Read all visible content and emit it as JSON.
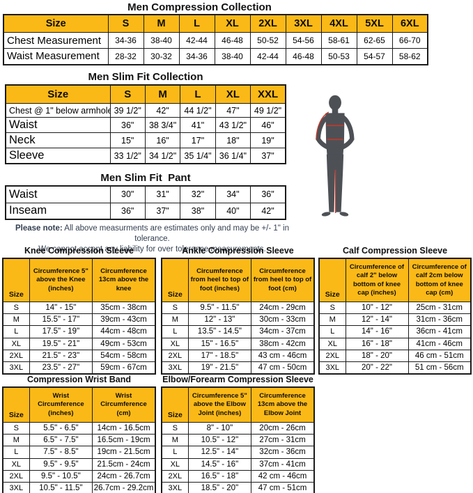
{
  "colors": {
    "header_gold": "#FBB917",
    "table_border": "#1b1b1b",
    "note_text": "#333F50",
    "figure_gray": "#4d5156",
    "measure_line_red": "#C0392B"
  },
  "tables": {
    "compression": {
      "title": "Men Compression Collection",
      "header": [
        "Size",
        "S",
        "M",
        "L",
        "XL",
        "2XL",
        "3XL",
        "4XL",
        "5XL",
        "6XL"
      ],
      "rows": [
        {
          "label": "Chest Measurement",
          "values": [
            "34-36",
            "38-40",
            "42-44",
            "46-48",
            "50-52",
            "54-56",
            "58-61",
            "62-65",
            "66-70"
          ]
        },
        {
          "label": "Waist Measurement",
          "values": [
            "28-32",
            "30-32",
            "34-36",
            "38-40",
            "42-44",
            "46-48",
            "50-53",
            "54-57",
            "58-62"
          ]
        }
      ]
    },
    "slim_fit": {
      "title": "Men Slim Fit Collection",
      "header": [
        "Size",
        "S",
        "M",
        "L",
        "XL",
        "XXL"
      ],
      "rows": [
        {
          "label": "Chest @ 1\" below armhole",
          "values": [
            "39 1/2\"",
            "42\"",
            "44 1/2\"",
            "47\"",
            "49 1/2\""
          ]
        },
        {
          "label": "Waist",
          "values": [
            "36\"",
            "38 3/4\"",
            "41\"",
            "43 1/2\"",
            "46\""
          ]
        },
        {
          "label": "Neck",
          "values": [
            "15\"",
            "16\"",
            "17\"",
            "18\"",
            "19\""
          ]
        },
        {
          "label": "Sleeve",
          "values": [
            "33 1/2\"",
            "34 1/2\"",
            "35 1/4\"",
            "36 1/4\"",
            "37\""
          ]
        }
      ]
    },
    "slim_fit_pant": {
      "title": "Men Slim Fit  Pant",
      "rows": [
        {
          "label": "Waist",
          "values": [
            "30\"",
            "31\"",
            "32\"",
            "34\"",
            "36\""
          ]
        },
        {
          "label": "Inseam",
          "values": [
            "36\"",
            "37\"",
            "38\"",
            "40\"",
            "42\""
          ]
        }
      ]
    },
    "knee": {
      "title": "Knee Compression Sleeve",
      "size_header": "Size",
      "col1": "Circumference 5\" above the Knee (inches)",
      "col2": "Circumference 13cm above the knee",
      "rows": [
        [
          "S",
          "14\" - 15\"",
          "35cm - 38cm"
        ],
        [
          "M",
          "15.5\" - 17\"",
          "39cm - 43cm"
        ],
        [
          "L",
          "17.5\" - 19\"",
          "44cm - 48cm"
        ],
        [
          "XL",
          "19.5\" - 21\"",
          "49cm - 53cm"
        ],
        [
          "2XL",
          "21.5\" - 23\"",
          "54cm - 58cm"
        ],
        [
          "3XL",
          "23.5\" - 27\"",
          "59cm - 67cm"
        ]
      ]
    },
    "ankle": {
      "title": "Ankle Compression Sleeve",
      "size_header": "Size",
      "col1": "Circumference from heel to top of foot (inches)",
      "col2": "Circumference from heel to top of foot (cm)",
      "rows": [
        [
          "S",
          "9.5\" - 11.5\"",
          "24cm - 29cm"
        ],
        [
          "M",
          "12\" - 13\"",
          "30cm - 33cm"
        ],
        [
          "L",
          "13.5\" - 14.5\"",
          "34cm - 37cm"
        ],
        [
          "XL",
          "15\" - 16.5\"",
          "38cm - 42cm"
        ],
        [
          "2XL",
          "17\" - 18.5\"",
          "43 cm - 46cm"
        ],
        [
          "3XL",
          "19\" - 21.5\"",
          "47 cm - 50cm"
        ]
      ]
    },
    "calf": {
      "title": "Calf Compression Sleeve",
      "size_header": "Size",
      "col1": "Circumference of calf 2\" below bottom of knee cap (inches)",
      "col2": "Circumference of calf 2cm below bottom of knee cap (cm)",
      "rows": [
        [
          "S",
          "10\" - 12\"",
          "25cm - 31cm"
        ],
        [
          "M",
          "12\" - 14\"",
          "31cm - 36cm"
        ],
        [
          "L",
          "14\" - 16\"",
          "36cm - 41cm"
        ],
        [
          "XL",
          "16\" - 18\"",
          "41cm - 46cm"
        ],
        [
          "2XL",
          "18\" - 20\"",
          "46 cm - 51cm"
        ],
        [
          "3XL",
          "20\" - 22\"",
          "51 cm - 56cm"
        ]
      ]
    },
    "wrist": {
      "title": "Compression Wrist Band",
      "size_header": "Size",
      "col1": "Wrist Circumference (inches)",
      "col2": "Wrist Circumference (cm)",
      "rows": [
        [
          "S",
          "5.5\" - 6.5\"",
          "14cm - 16.5cm"
        ],
        [
          "M",
          "6.5\" - 7.5\"",
          "16.5cm - 19cm"
        ],
        [
          "L",
          "7.5\" - 8.5\"",
          "19cm - 21.5cm"
        ],
        [
          "XL",
          "9.5\" - 9.5\"",
          "21.5cm - 24cm"
        ],
        [
          "2XL",
          "9.5\" - 10.5\"",
          "24cm - 26.7cm"
        ],
        [
          "3XL",
          "10.5\" - 11.5\"",
          "26.7cm - 29.2cm"
        ]
      ]
    },
    "elbow": {
      "title": "Elbow/Forearm Compression Sleeve",
      "size_header": "Size",
      "col1": "Circumference 5\" above the Elbow Joint (inches)",
      "col2": "Circumference 13cm above the Elbow Joint",
      "rows": [
        [
          "S",
          "8\" - 10\"",
          "20cm - 26cm"
        ],
        [
          "M",
          "10.5\" -  12\"",
          "27cm - 31cm"
        ],
        [
          "L",
          "12.5\" - 14\"",
          "32cm - 36cm"
        ],
        [
          "XL",
          "14.5\" - 16\"",
          "37cm - 41cm"
        ],
        [
          "2XL",
          "16.5\" - 18\"",
          "42 cm - 46cm"
        ],
        [
          "3XL",
          "18.5\" - 20\"",
          "47 cm - 51cm"
        ]
      ]
    }
  },
  "note": {
    "label": "Please note:",
    "line1": " All above measurments are estimates only and may be +/- 1\" in tolerance.",
    "line2": "We cannot accept any liability for over tolerance measurements."
  }
}
